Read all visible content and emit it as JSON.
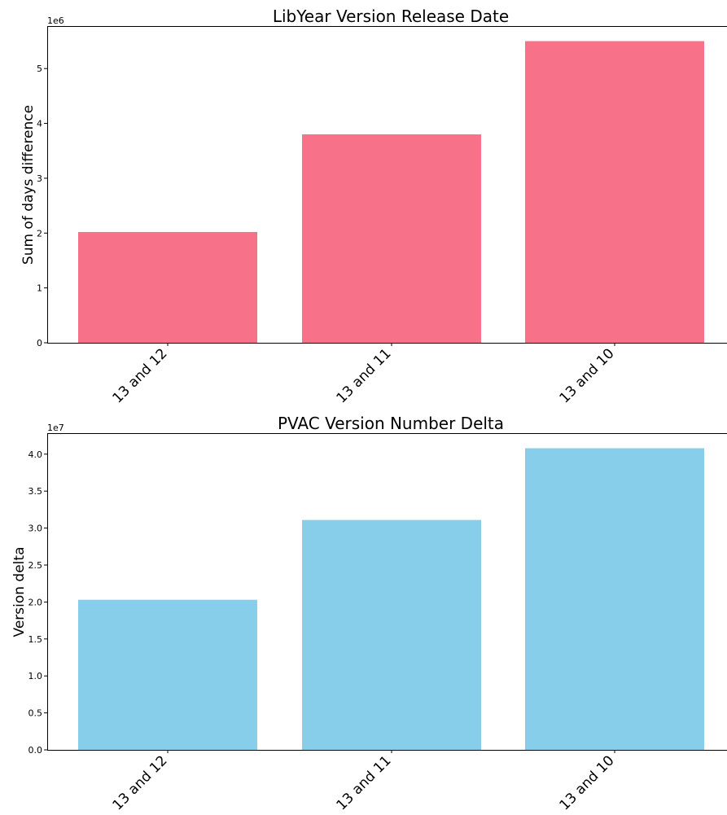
{
  "chart_data": [
    {
      "type": "bar",
      "title": "LibYear Version Release Date",
      "xlabel": "",
      "ylabel": "Sum of days difference",
      "offset_text": "1e6",
      "scale": 1000000,
      "categories": [
        "13 and 12",
        "13 and 11",
        "13 and 10"
      ],
      "values": [
        2020000,
        3800000,
        5500000
      ],
      "ylim": [
        0,
        5775000
      ],
      "yticks": [
        0,
        1,
        2,
        3,
        4,
        5
      ],
      "ytick_labels": [
        "0",
        "1",
        "2",
        "3",
        "4",
        "5"
      ],
      "color": "#f77189",
      "grid": false,
      "legend": "none"
    },
    {
      "type": "bar",
      "title": "PVAC Version Number Delta",
      "xlabel": "",
      "ylabel": "Version delta",
      "offset_text": "1e7",
      "scale": 10000000,
      "categories": [
        "13 and 12",
        "13 and 11",
        "13 and 10"
      ],
      "values": [
        20300000,
        31100000,
        40800000
      ],
      "ylim": [
        0,
        42840000
      ],
      "yticks": [
        0,
        0.5,
        1.0,
        1.5,
        2.0,
        2.5,
        3.0,
        3.5,
        4.0
      ],
      "ytick_labels": [
        "0.0",
        "0.5",
        "1.0",
        "1.5",
        "2.0",
        "2.5",
        "3.0",
        "3.5",
        "4.0"
      ],
      "color": "#87ceeb",
      "grid": false,
      "legend": "none"
    }
  ]
}
